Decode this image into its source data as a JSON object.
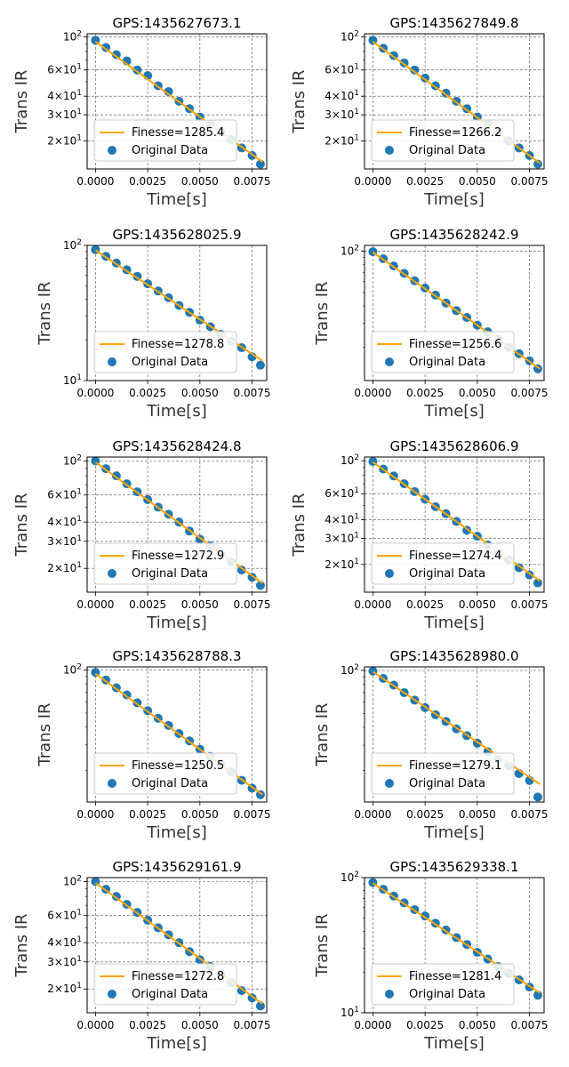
{
  "figure": {
    "colors": {
      "fit_line": "#FFA500",
      "data_points": "#1F77B4",
      "grid": "#555555"
    }
  },
  "chart_data": [
    {
      "type": "scatter",
      "title": "GPS:1435627673.1",
      "xlabel": "Time[s]",
      "ylabel": "Trans IR",
      "xlim": [
        -0.0004,
        0.0082
      ],
      "yscale": "log",
      "ylim": [
        13,
        105
      ],
      "xticks": [
        0.0,
        0.0025,
        0.005,
        0.0075
      ],
      "xtick_labels": [
        "0.0000",
        "0.0025",
        "0.0050",
        "0.0075"
      ],
      "yticks": [
        20,
        30,
        40,
        60,
        100
      ],
      "ytick_labels": [
        "2×10^1",
        "3×10^1",
        "4×10^1",
        "6×10^1",
        "10^2"
      ],
      "grid": true,
      "legend_position": "lower-left",
      "series": [
        {
          "name": "Finesse=1285.4",
          "kind": "line",
          "x": [
            0.0,
            0.008
          ],
          "y": [
            93,
            14.5
          ]
        },
        {
          "name": "Original Data",
          "kind": "scatter",
          "x": [
            0.0,
            0.0005,
            0.001,
            0.0015,
            0.002,
            0.0025,
            0.003,
            0.0035,
            0.004,
            0.0045,
            0.005,
            0.0055,
            0.006,
            0.0065,
            0.007,
            0.0075,
            0.0079
          ],
          "y": [
            95,
            85,
            76,
            69,
            60,
            55,
            47,
            43,
            37,
            33,
            29,
            26,
            23,
            20.5,
            18,
            16,
            14
          ]
        }
      ]
    },
    {
      "type": "scatter",
      "title": "GPS:1435627849.8",
      "xlabel": "Time[s]",
      "ylabel": "Trans IR",
      "xlim": [
        -0.0004,
        0.0082
      ],
      "yscale": "log",
      "ylim": [
        13,
        105
      ],
      "xticks": [
        0.0,
        0.0025,
        0.005,
        0.0075
      ],
      "xtick_labels": [
        "0.0000",
        "0.0025",
        "0.0050",
        "0.0075"
      ],
      "yticks": [
        20,
        30,
        40,
        60,
        100
      ],
      "ytick_labels": [
        "2×10^1",
        "3×10^1",
        "4×10^1",
        "6×10^1",
        "10^2"
      ],
      "grid": true,
      "legend_position": "lower-left",
      "series": [
        {
          "name": "Finesse=1266.2",
          "kind": "line",
          "x": [
            0.0,
            0.008
          ],
          "y": [
            93,
            14.2
          ]
        },
        {
          "name": "Original Data",
          "kind": "scatter",
          "x": [
            0.0,
            0.0005,
            0.001,
            0.0015,
            0.002,
            0.0025,
            0.003,
            0.0035,
            0.004,
            0.0045,
            0.005,
            0.0055,
            0.006,
            0.0065,
            0.007,
            0.0075,
            0.0079
          ],
          "y": [
            95,
            84,
            75,
            67,
            60,
            53,
            47,
            42,
            37,
            33,
            29,
            26,
            23,
            20,
            18,
            16,
            14
          ]
        }
      ]
    },
    {
      "type": "scatter",
      "title": "GPS:1435628025.9",
      "xlabel": "Time[s]",
      "ylabel": "Trans IR",
      "xlim": [
        -0.0004,
        0.0082
      ],
      "yscale": "log",
      "ylim": [
        10,
        100
      ],
      "xticks": [
        0.0,
        0.0025,
        0.005,
        0.0075
      ],
      "xtick_labels": [
        "0.0000",
        "0.0025",
        "0.0050",
        "0.0075"
      ],
      "yticks": [
        10,
        100
      ],
      "ytick_labels": [
        "10^1",
        "10^2"
      ],
      "grid": true,
      "legend_position": "lower-left",
      "series": [
        {
          "name": "Finesse=1278.8",
          "kind": "line",
          "x": [
            0.0,
            0.008
          ],
          "y": [
            92,
            14
          ]
        },
        {
          "name": "Original Data",
          "kind": "scatter",
          "x": [
            0.0,
            0.0005,
            0.001,
            0.0015,
            0.002,
            0.0025,
            0.003,
            0.0035,
            0.004,
            0.0045,
            0.005,
            0.0055,
            0.006,
            0.0065,
            0.007,
            0.0075,
            0.0079
          ],
          "y": [
            93,
            83,
            74,
            66,
            59,
            52,
            46,
            41,
            36,
            32,
            28,
            25,
            22,
            19.5,
            17.5,
            15,
            13
          ]
        }
      ]
    },
    {
      "type": "scatter",
      "title": "GPS:1435628242.9",
      "xlabel": "Time[s]",
      "ylabel": "Trans IR",
      "xlim": [
        -0.0004,
        0.0082
      ],
      "yscale": "log",
      "ylim": [
        11.5,
        110
      ],
      "xticks": [
        0.0,
        0.0025,
        0.005,
        0.0075
      ],
      "xtick_labels": [
        "0.0000",
        "0.0025",
        "0.0050",
        "0.0075"
      ],
      "yticks": [
        100
      ],
      "ytick_labels": [
        "10^2"
      ],
      "grid": true,
      "legend_position": "lower-left",
      "series": [
        {
          "name": "Finesse=1256.6",
          "kind": "line",
          "x": [
            0.0,
            0.008
          ],
          "y": [
            98,
            14
          ]
        },
        {
          "name": "Original Data",
          "kind": "scatter",
          "x": [
            0.0,
            0.0005,
            0.001,
            0.0015,
            0.002,
            0.0025,
            0.003,
            0.0035,
            0.004,
            0.0045,
            0.005,
            0.0055,
            0.006,
            0.0065,
            0.007,
            0.0075,
            0.0079
          ],
          "y": [
            99,
            88,
            78,
            69,
            61,
            54,
            48,
            42,
            37,
            33,
            29,
            26,
            23,
            20,
            18,
            16,
            14
          ]
        }
      ]
    },
    {
      "type": "scatter",
      "title": "GPS:1435628424.8",
      "xlabel": "Time[s]",
      "ylabel": "Trans IR",
      "xlim": [
        -0.0004,
        0.0082
      ],
      "yscale": "log",
      "ylim": [
        14,
        106
      ],
      "xticks": [
        0.0,
        0.0025,
        0.005,
        0.0075
      ],
      "xtick_labels": [
        "0.0000",
        "0.0025",
        "0.0050",
        "0.0075"
      ],
      "yticks": [
        20,
        30,
        40,
        60,
        100
      ],
      "ytick_labels": [
        "2×10^1",
        "3×10^1",
        "4×10^1",
        "6×10^1",
        "10^2"
      ],
      "grid": true,
      "legend_position": "lower-left",
      "series": [
        {
          "name": "Finesse=1272.9",
          "kind": "line",
          "x": [
            0.0,
            0.008
          ],
          "y": [
            98,
            16
          ]
        },
        {
          "name": "Original Data",
          "kind": "scatter",
          "x": [
            0.0,
            0.0005,
            0.001,
            0.0015,
            0.002,
            0.0025,
            0.003,
            0.0035,
            0.004,
            0.0045,
            0.005,
            0.0055,
            0.006,
            0.0065,
            0.007,
            0.0075,
            0.0079
          ],
          "y": [
            100,
            89,
            80,
            71,
            63,
            56,
            50,
            45,
            40,
            35,
            31,
            28,
            25,
            22,
            19.5,
            17.5,
            15.5
          ]
        }
      ]
    },
    {
      "type": "scatter",
      "title": "GPS:1435628606.9",
      "xlabel": "Time[s]",
      "ylabel": "Trans IR",
      "xlim": [
        -0.0004,
        0.0082
      ],
      "yscale": "log",
      "ylim": [
        13,
        106
      ],
      "xticks": [
        0.0,
        0.0025,
        0.005,
        0.0075
      ],
      "xtick_labels": [
        "0.0000",
        "0.0025",
        "0.0050",
        "0.0075"
      ],
      "yticks": [
        20,
        30,
        40,
        60,
        100
      ],
      "ytick_labels": [
        "2×10^1",
        "3×10^1",
        "4×10^1",
        "6×10^1",
        "10^2"
      ],
      "grid": true,
      "legend_position": "lower-left",
      "series": [
        {
          "name": "Finesse=1274.4",
          "kind": "line",
          "x": [
            0.0,
            0.008
          ],
          "y": [
            98,
            15.5
          ]
        },
        {
          "name": "Original Data",
          "kind": "scatter",
          "x": [
            0.0,
            0.0005,
            0.001,
            0.0015,
            0.002,
            0.0025,
            0.003,
            0.0035,
            0.004,
            0.0045,
            0.005,
            0.0055,
            0.006,
            0.0065,
            0.007,
            0.0075,
            0.0079
          ],
          "y": [
            99,
            88,
            79,
            70,
            62,
            55,
            49,
            44,
            39,
            34,
            31,
            27,
            24,
            21.5,
            19,
            17,
            15
          ]
        }
      ]
    },
    {
      "type": "scatter",
      "title": "GPS:1435628788.3",
      "xlabel": "Time[s]",
      "ylabel": "Trans IR",
      "xlim": [
        -0.0004,
        0.0082
      ],
      "yscale": "log",
      "ylim": [
        12,
        105
      ],
      "xticks": [
        0.0,
        0.0025,
        0.005,
        0.0075
      ],
      "xtick_labels": [
        "0.0000",
        "0.0025",
        "0.0050",
        "0.0075"
      ],
      "yticks": [
        100
      ],
      "ytick_labels": [
        "10^2"
      ],
      "grid": true,
      "legend_position": "lower-left",
      "series": [
        {
          "name": "Finesse=1250.5",
          "kind": "line",
          "x": [
            0.0,
            0.008
          ],
          "y": [
            94,
            13.5
          ]
        },
        {
          "name": "Original Data",
          "kind": "scatter",
          "x": [
            0.0,
            0.0005,
            0.001,
            0.0015,
            0.002,
            0.0025,
            0.003,
            0.0035,
            0.004,
            0.0045,
            0.005,
            0.0055,
            0.006,
            0.0065,
            0.007,
            0.0075,
            0.0079
          ],
          "y": [
            96,
            85,
            75,
            67,
            59,
            52,
            46,
            41,
            36,
            32,
            28,
            25,
            22,
            19.5,
            17,
            15,
            13.5
          ]
        }
      ]
    },
    {
      "type": "scatter",
      "title": "GPS:1435628980.0",
      "xlabel": "Time[s]",
      "ylabel": "Trans IR",
      "xlim": [
        -0.0004,
        0.0082
      ],
      "yscale": "log",
      "ylim": [
        12,
        106
      ],
      "xticks": [
        0.0,
        0.0025,
        0.005,
        0.0075
      ],
      "xtick_labels": [
        "0.0000",
        "0.0025",
        "0.0050",
        "0.0075"
      ],
      "yticks": [
        100
      ],
      "ytick_labels": [
        "10^2"
      ],
      "grid": true,
      "legend_position": "lower-left",
      "series": [
        {
          "name": "Finesse=1279.1",
          "kind": "line",
          "x": [
            0.0,
            0.008
          ],
          "y": [
            98,
            16
          ]
        },
        {
          "name": "Original Data",
          "kind": "scatter",
          "x": [
            0.0,
            0.0005,
            0.001,
            0.0015,
            0.002,
            0.0025,
            0.003,
            0.0035,
            0.004,
            0.0045,
            0.005,
            0.0055,
            0.006,
            0.0065,
            0.007,
            0.0075,
            0.0079
          ],
          "y": [
            99,
            88,
            79,
            70,
            62,
            55,
            49,
            44,
            39,
            35,
            31,
            27,
            24,
            21.5,
            19,
            17,
            13
          ]
        }
      ]
    },
    {
      "type": "scatter",
      "title": "GPS:1435629161.9",
      "xlabel": "Time[s]",
      "ylabel": "Trans IR",
      "xlim": [
        -0.0004,
        0.0082
      ],
      "yscale": "log",
      "ylim": [
        14,
        106
      ],
      "xticks": [
        0.0,
        0.0025,
        0.005,
        0.0075
      ],
      "xtick_labels": [
        "0.0000",
        "0.0025",
        "0.0050",
        "0.0075"
      ],
      "yticks": [
        20,
        30,
        40,
        60,
        100
      ],
      "ytick_labels": [
        "2×10^1",
        "3×10^1",
        "4×10^1",
        "6×10^1",
        "10^2"
      ],
      "grid": true,
      "legend_position": "lower-left",
      "series": [
        {
          "name": "Finesse=1272.8",
          "kind": "line",
          "x": [
            0.0,
            0.008
          ],
          "y": [
            98,
            16
          ]
        },
        {
          "name": "Original Data",
          "kind": "scatter",
          "x": [
            0.0,
            0.0005,
            0.001,
            0.0015,
            0.002,
            0.0025,
            0.003,
            0.0035,
            0.004,
            0.0045,
            0.005,
            0.0055,
            0.006,
            0.0065,
            0.007,
            0.0075,
            0.0079
          ],
          "y": [
            100,
            89,
            80,
            71,
            63,
            56,
            50,
            45,
            40,
            35,
            31,
            28,
            25,
            22,
            19.5,
            17.5,
            15.5
          ]
        }
      ]
    },
    {
      "type": "scatter",
      "title": "GPS:1435629338.1",
      "xlabel": "Time[s]",
      "ylabel": "Trans IR",
      "xlim": [
        -0.0004,
        0.0082
      ],
      "yscale": "log",
      "ylim": [
        10,
        100
      ],
      "xticks": [
        0.0,
        0.0025,
        0.005,
        0.0075
      ],
      "xtick_labels": [
        "0.0000",
        "0.0025",
        "0.0050",
        "0.0075"
      ],
      "yticks": [
        10,
        100
      ],
      "ytick_labels": [
        "10^1",
        "10^2"
      ],
      "grid": true,
      "legend_position": "lower-left",
      "series": [
        {
          "name": "Finesse=1281.4",
          "kind": "line",
          "x": [
            0.0,
            0.008
          ],
          "y": [
            91,
            14
          ]
        },
        {
          "name": "Original Data",
          "kind": "scatter",
          "x": [
            0.0,
            0.0005,
            0.001,
            0.0015,
            0.002,
            0.0025,
            0.003,
            0.0035,
            0.004,
            0.0045,
            0.005,
            0.0055,
            0.006,
            0.0065,
            0.007,
            0.0075,
            0.0079
          ],
          "y": [
            92,
            82,
            73,
            65,
            58,
            52,
            46,
            41,
            36,
            32,
            28,
            25,
            22,
            19.5,
            17.5,
            15.5,
            13.5
          ]
        }
      ]
    }
  ]
}
